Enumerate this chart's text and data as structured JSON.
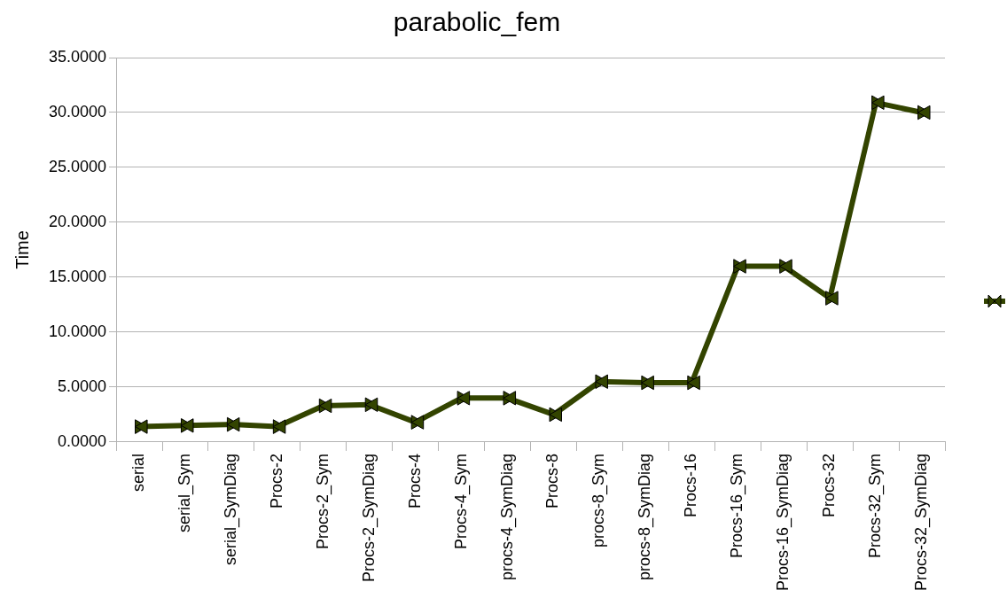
{
  "chart_data": {
    "type": "line",
    "title": "parabolic_fem",
    "ylabel": "Time",
    "categories": [
      "serial",
      "serial_Sym",
      "serial_SymDiag",
      "Procs-2",
      "Procs-2_Sym",
      "Procs-2_SymDiag",
      "Procs-4",
      "Procs-4_Sym",
      "procs-4_SymDiag",
      "Procs-8",
      "procs-8_Sym",
      "procs-8_SymDiag",
      "Procs-16",
      "Procs-16_Sym",
      "Procs-16_SymDiag",
      "Procs-32",
      "Procs-32_Sym",
      "Procs-32_SymDiag"
    ],
    "series": [
      {
        "color": "#334400",
        "values": [
          1.4,
          1.5,
          1.6,
          1.4,
          3.3,
          3.4,
          1.8,
          4.0,
          4.0,
          2.5,
          5.5,
          5.4,
          5.4,
          16.0,
          16.0,
          13.1,
          30.9,
          30.0
        ]
      }
    ],
    "ylim": [
      0,
      35
    ],
    "yticks": [
      {
        "value": 0,
        "label": "0.0000"
      },
      {
        "value": 5,
        "label": "5.0000"
      },
      {
        "value": 10,
        "label": "10.0000"
      },
      {
        "value": 15,
        "label": "15.0000"
      },
      {
        "value": 20,
        "label": "20.0000"
      },
      {
        "value": 25,
        "label": "25.0000"
      },
      {
        "value": 30,
        "label": "30.0000"
      },
      {
        "value": 35,
        "label": "35.0000"
      }
    ],
    "grid": "y",
    "marker": "triangle",
    "line_style": "solid"
  }
}
